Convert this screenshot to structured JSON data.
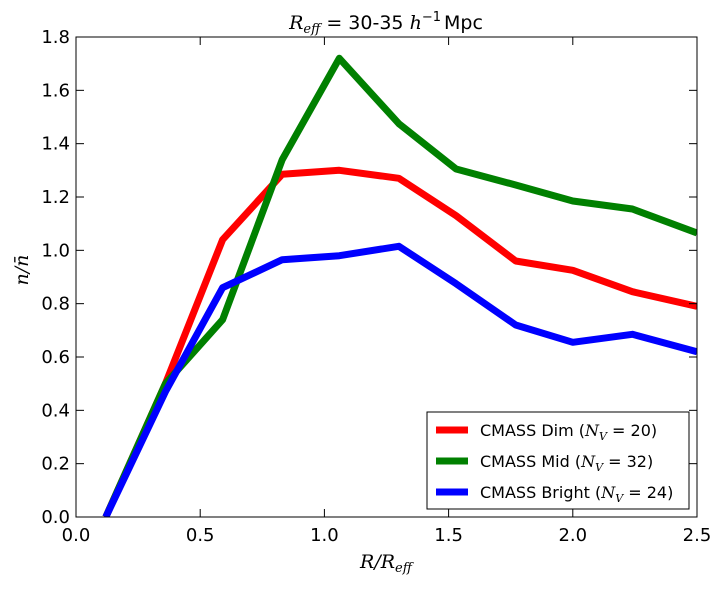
{
  "chart_data": {
    "type": "line",
    "title": "R_eff = 30-35 h^-1 Mpc",
    "title_parts": {
      "symbol": "R",
      "sub": "eff",
      "eq": " = 30-35 ",
      "h": "h",
      "sup": "−1",
      "unit": "Mpc"
    },
    "xlabel": "R/R_eff",
    "xlabel_parts": {
      "a": "R/R",
      "sub": "eff"
    },
    "ylabel": "n/n̄",
    "ylabel_parts": {
      "n": "n/",
      "nbar": "n̄"
    },
    "xlim": [
      0.0,
      2.5
    ],
    "ylim": [
      0.0,
      1.8
    ],
    "xticks": [
      0.0,
      0.5,
      1.0,
      1.5,
      2.0,
      2.5
    ],
    "xtick_labels": [
      "0.0",
      "0.5",
      "1.0",
      "1.5",
      "2.0",
      "2.5"
    ],
    "yticks": [
      0.0,
      0.2,
      0.4,
      0.6,
      0.8,
      1.0,
      1.2,
      1.4,
      1.6,
      1.8
    ],
    "ytick_labels": [
      "0.0",
      "0.2",
      "0.4",
      "0.6",
      "0.8",
      "1.0",
      "1.2",
      "1.4",
      "1.6",
      "1.8"
    ],
    "grid": false,
    "legend_position": "bottom-right",
    "x": [
      0.12,
      0.36,
      0.59,
      0.83,
      1.06,
      1.3,
      1.53,
      1.77,
      2.0,
      2.24,
      2.5
    ],
    "series": [
      {
        "name": "CMASS Dim",
        "nv": "20",
        "color": "#ff0000",
        "values": [
          0.0,
          0.5,
          1.04,
          1.285,
          1.3,
          1.27,
          1.13,
          0.96,
          0.925,
          0.845,
          0.79
        ]
      },
      {
        "name": "CMASS Mid",
        "nv": "32",
        "color": "#008000",
        "values": [
          0.0,
          0.5,
          0.74,
          1.34,
          1.72,
          1.475,
          1.305,
          1.245,
          1.185,
          1.155,
          1.065
        ]
      },
      {
        "name": "CMASS Bright",
        "nv": "24",
        "color": "#0000ff",
        "values": [
          0.0,
          0.47,
          0.86,
          0.965,
          0.98,
          1.015,
          0.875,
          0.72,
          0.655,
          0.685,
          0.62
        ]
      }
    ]
  },
  "legend_text": {
    "nv_symbol": "N",
    "nv_sub": "V",
    "eq": " = "
  }
}
